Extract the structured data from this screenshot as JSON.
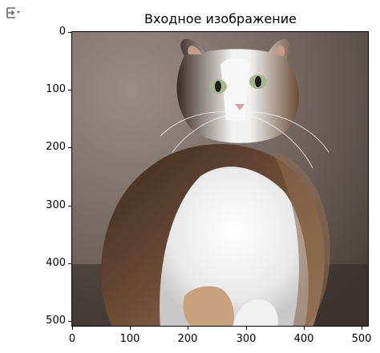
{
  "title": "Входное изображение",
  "toolbar": {
    "icon": "output-toggle-icon"
  },
  "axes": {
    "x_ticks": [
      "0",
      "100",
      "200",
      "300",
      "400",
      "500"
    ],
    "y_ticks": [
      "0",
      "100",
      "200",
      "300",
      "400",
      "500"
    ]
  },
  "image": {
    "subject": "photo-image"
  },
  "colors": {
    "frame": "#000000",
    "background": "#ffffff"
  }
}
